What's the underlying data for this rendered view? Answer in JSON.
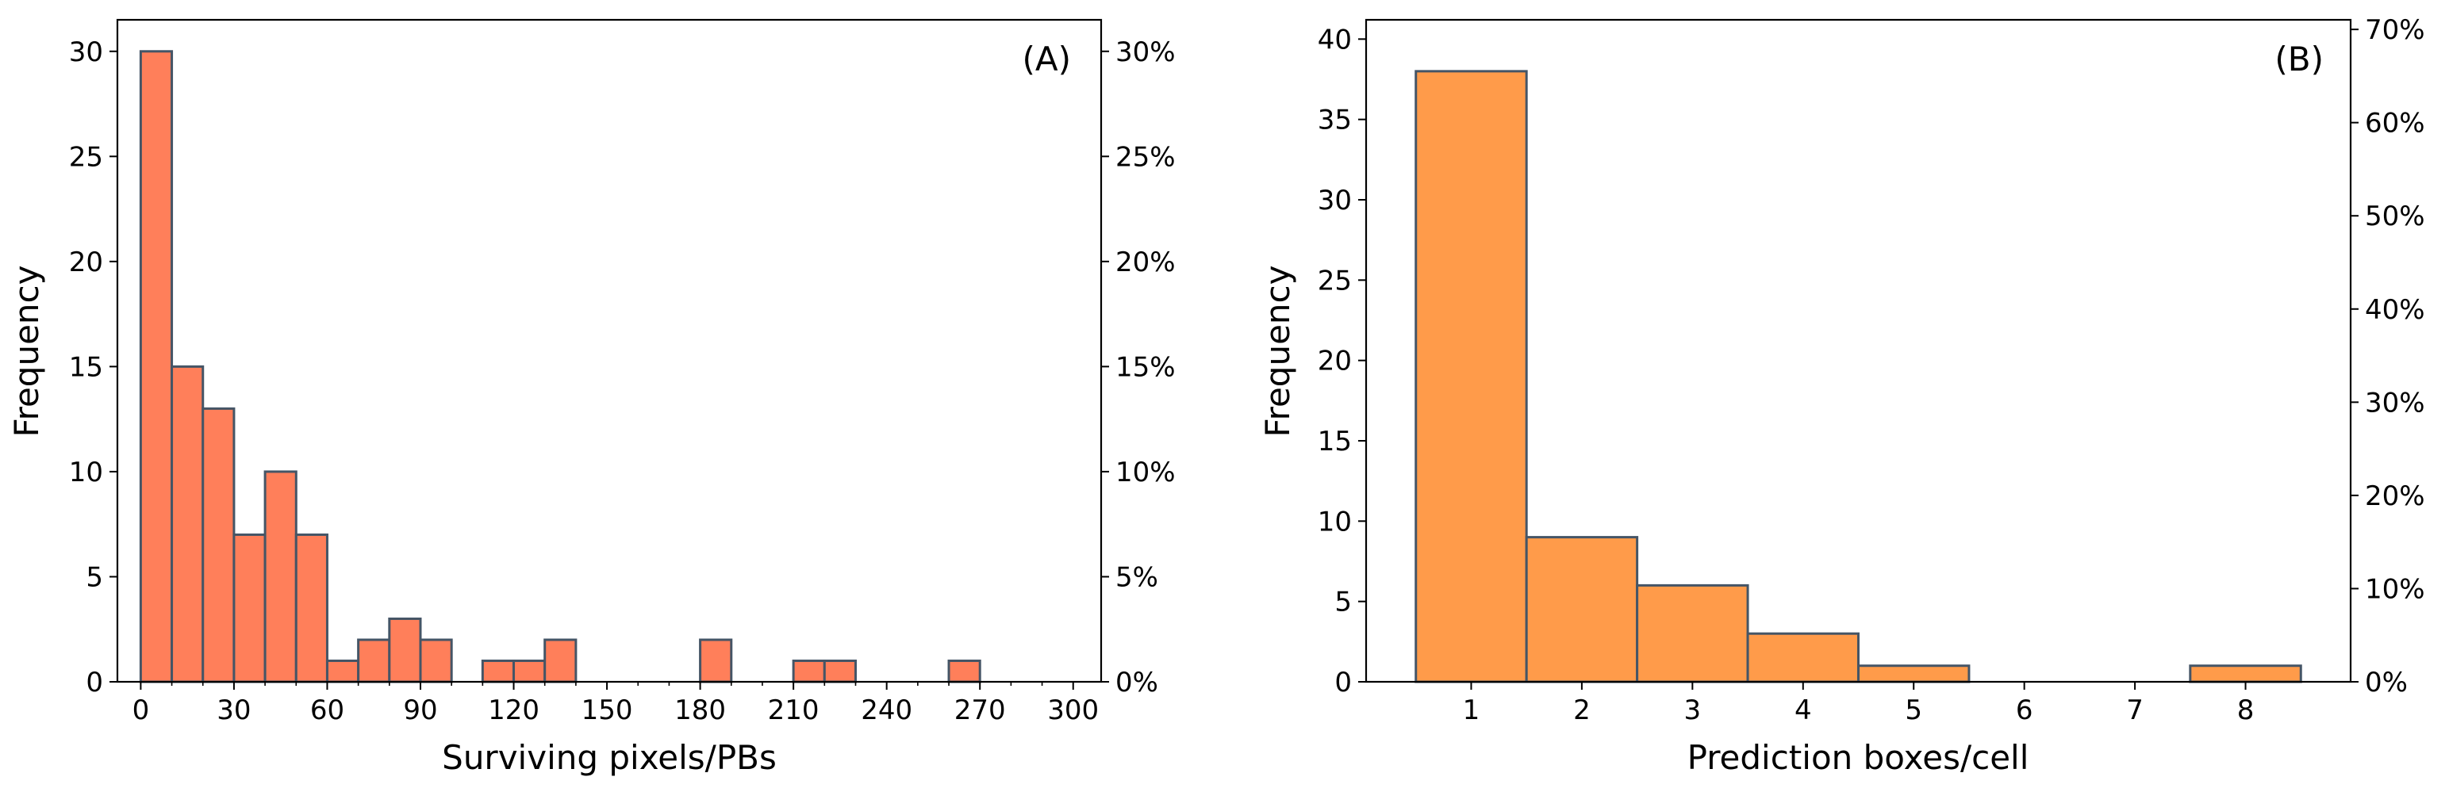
{
  "chart_data": [
    {
      "type": "bar",
      "panel_label": "(A)",
      "xlabel": "Surviving pixels/PBs",
      "ylabel": "Frequency",
      "bin_width": 10,
      "bins": [
        {
          "start": 0,
          "count": 30
        },
        {
          "start": 10,
          "count": 15
        },
        {
          "start": 20,
          "count": 13
        },
        {
          "start": 30,
          "count": 7
        },
        {
          "start": 40,
          "count": 10
        },
        {
          "start": 50,
          "count": 7
        },
        {
          "start": 60,
          "count": 1
        },
        {
          "start": 70,
          "count": 2
        },
        {
          "start": 80,
          "count": 3
        },
        {
          "start": 90,
          "count": 2
        },
        {
          "start": 110,
          "count": 1
        },
        {
          "start": 120,
          "count": 1
        },
        {
          "start": 130,
          "count": 2
        },
        {
          "start": 180,
          "count": 2
        },
        {
          "start": 210,
          "count": 1
        },
        {
          "start": 220,
          "count": 1
        },
        {
          "start": 260,
          "count": 1
        }
      ],
      "xlim": [
        -7.5,
        309
      ],
      "ylim": [
        0,
        31.5
      ],
      "x_ticks": [
        "0",
        "30",
        "60",
        "90",
        "120",
        "150",
        "180",
        "210",
        "240",
        "270",
        "300"
      ],
      "y_ticks": [
        "0",
        "5",
        "10",
        "15",
        "20",
        "25",
        "30"
      ],
      "secondary_y_ticks": [
        "0%",
        "5%",
        "10%",
        "15%",
        "20%",
        "25%",
        "30%"
      ],
      "secondary_ylim_percent": [
        0,
        31.5
      ],
      "bar_color": "#ff7f5a",
      "edge_color": "#455566",
      "grid": false
    },
    {
      "type": "bar",
      "panel_label": "(B)",
      "xlabel": "Prediction boxes/cell",
      "ylabel": "Frequency",
      "categories": [
        "1",
        "2",
        "3",
        "4",
        "5",
        "6",
        "7",
        "8"
      ],
      "values": [
        38,
        9,
        6,
        3,
        1,
        0,
        0,
        1
      ],
      "xlim": [
        0.05,
        8.95
      ],
      "ylim": [
        0,
        41.2
      ],
      "x_ticks": [
        "1",
        "2",
        "3",
        "4",
        "5",
        "6",
        "7",
        "8"
      ],
      "y_ticks": [
        "0",
        "5",
        "10",
        "15",
        "20",
        "25",
        "30",
        "35",
        "40"
      ],
      "secondary_y_ticks": [
        "0%",
        "10%",
        "20%",
        "30%",
        "40%",
        "50%",
        "60%",
        "70%"
      ],
      "secondary_ylim_percent": [
        0,
        71.03
      ],
      "bar_color": "#ff9b4a",
      "edge_color": "#455566",
      "grid": false
    }
  ]
}
